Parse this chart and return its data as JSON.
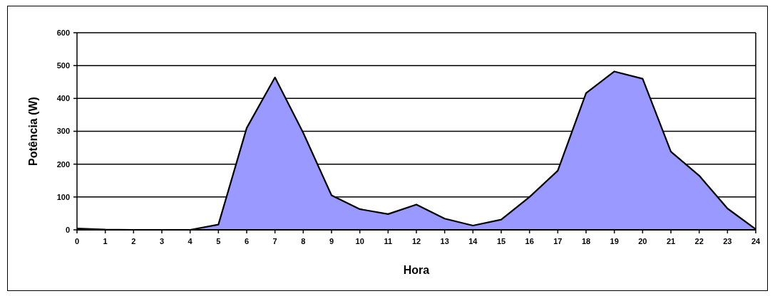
{
  "chart_data": {
    "type": "area",
    "xlabel": "Hora",
    "ylabel": "Potência (W)",
    "x": [
      0,
      1,
      2,
      3,
      4,
      5,
      6,
      7,
      8,
      9,
      10,
      11,
      12,
      13,
      14,
      15,
      16,
      17,
      18,
      19,
      20,
      21,
      22,
      23,
      24
    ],
    "series": [
      {
        "color": "#9999ff",
        "values": [
          4,
          1,
          0,
          0,
          0,
          16,
          310,
          464,
          295,
          105,
          63,
          48,
          77,
          34,
          13,
          31,
          100,
          180,
          416,
          482,
          460,
          238,
          165,
          65,
          2
        ]
      }
    ],
    "xlim": [
      0,
      24
    ],
    "xticks": [
      0,
      1,
      2,
      3,
      4,
      5,
      6,
      7,
      8,
      9,
      10,
      11,
      12,
      13,
      14,
      15,
      16,
      17,
      18,
      19,
      20,
      21,
      22,
      23,
      24
    ],
    "ylim": [
      0,
      600
    ],
    "yticks": [
      0,
      100,
      200,
      300,
      400,
      500,
      600
    ],
    "grid": "y"
  }
}
